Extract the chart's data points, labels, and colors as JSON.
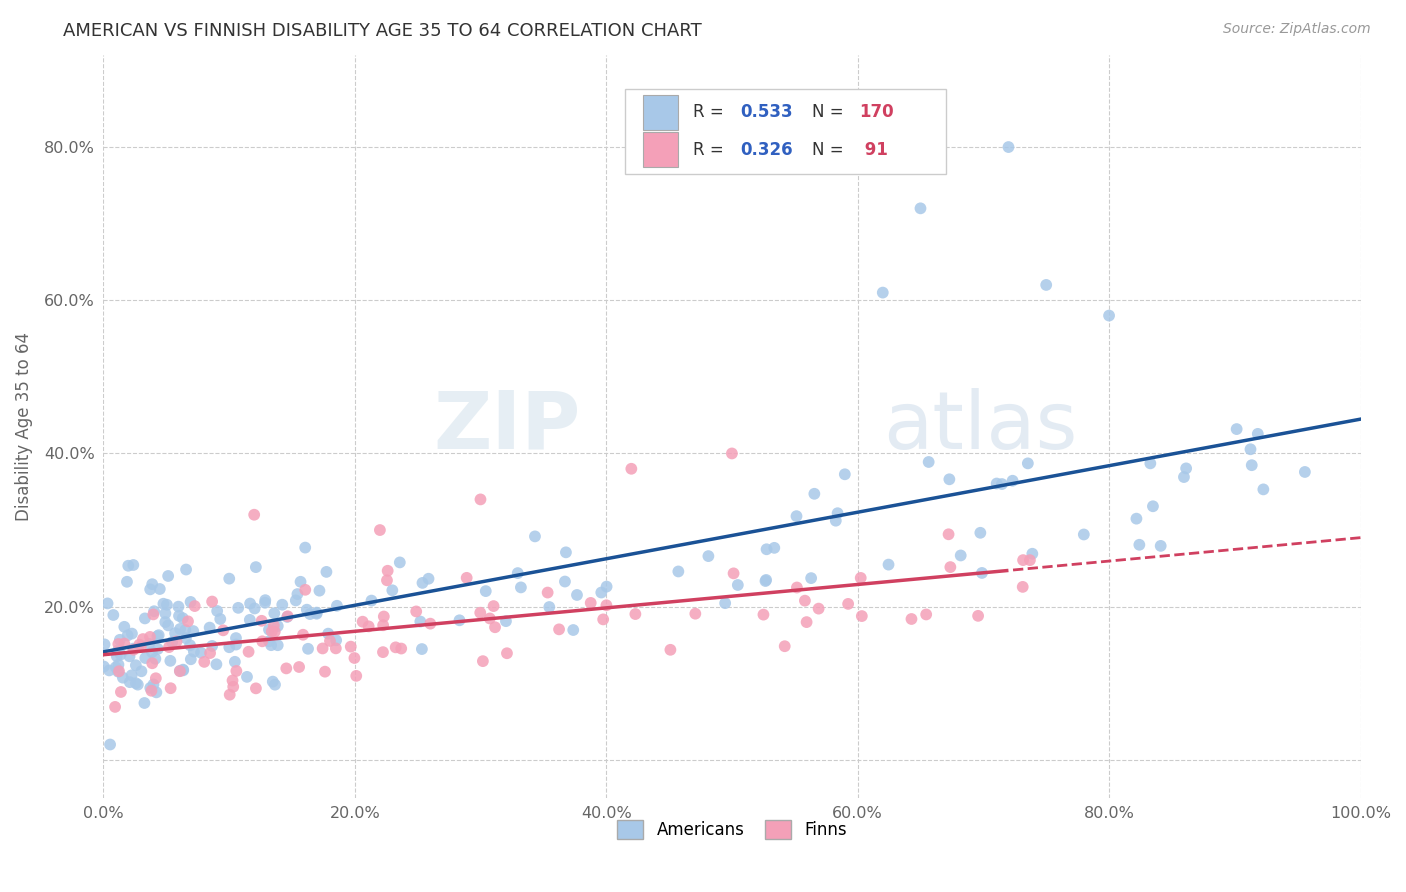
{
  "title": "AMERICAN VS FINNISH DISABILITY AGE 35 TO 64 CORRELATION CHART",
  "source": "Source: ZipAtlas.com",
  "ylabel": "Disability Age 35 to 64",
  "xlim": [
    0.0,
    1.0
  ],
  "ylim": [
    -0.05,
    0.92
  ],
  "xticks": [
    0.0,
    0.2,
    0.4,
    0.6,
    0.8,
    1.0
  ],
  "xticklabels": [
    "0.0%",
    "20.0%",
    "40.0%",
    "60.0%",
    "80.0%",
    "100.0%"
  ],
  "yticks": [
    0.0,
    0.2,
    0.4,
    0.6,
    0.8
  ],
  "yticklabels": [
    "",
    "20.0%",
    "40.0%",
    "60.0%",
    "80.0%"
  ],
  "americans_color": "#a8c8e8",
  "finns_color": "#f4a0b8",
  "americans_line_color": "#1a5296",
  "finns_line_color": "#d04060",
  "legend_R_color": "#3060c0",
  "legend_N_color": "#d04060",
  "watermark_zip": "ZIP",
  "watermark_atlas": "atlas",
  "background_color": "#ffffff",
  "grid_color": "#cccccc",
  "americans_intercept": 0.145,
  "americans_slope": 0.245,
  "finns_intercept": 0.135,
  "finns_slope": 0.155
}
